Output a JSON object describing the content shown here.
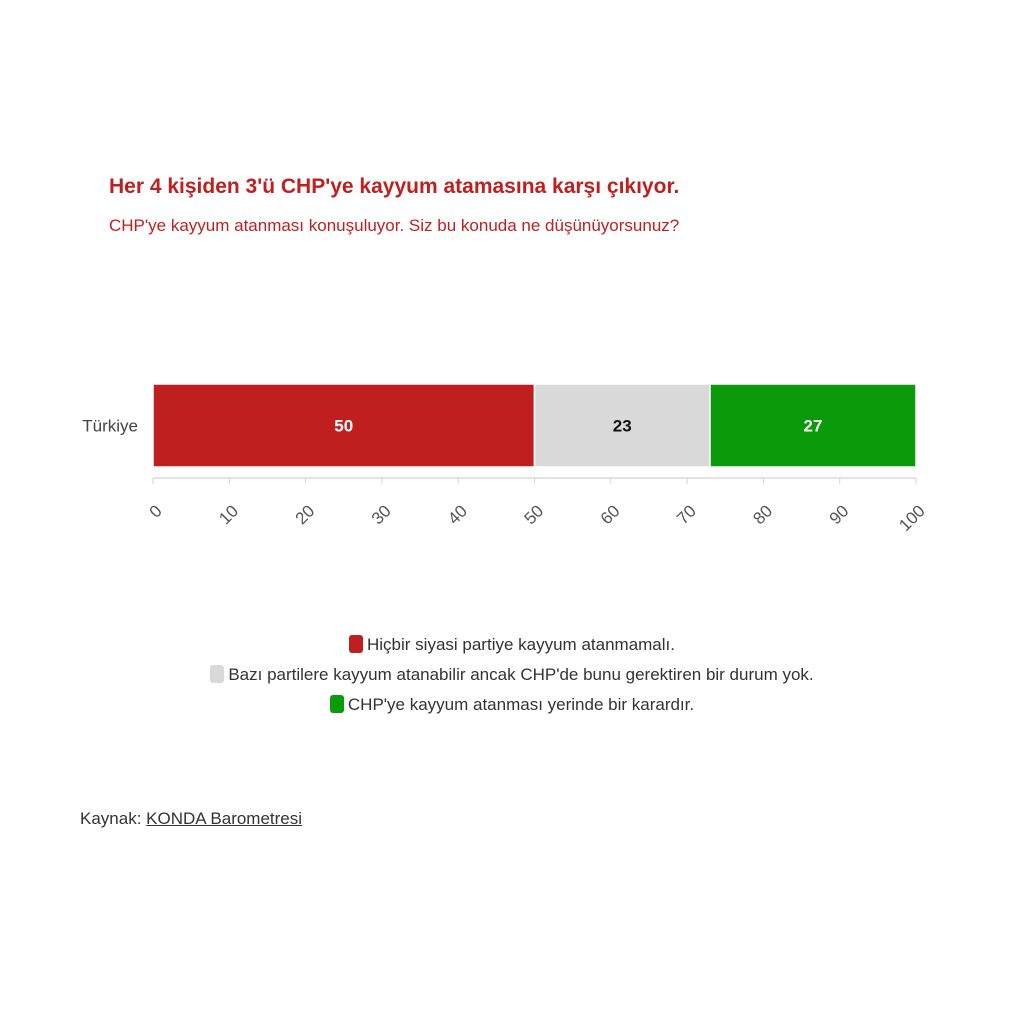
{
  "chart_data": {
    "type": "bar",
    "orientation": "horizontal",
    "stacked": true,
    "title": "Her 4 kişiden 3'ü CHP'ye kayyum atamasına karşı çıkıyor.",
    "subtitle": "CHP'ye kayyum atanması konuşuluyor. Siz bu konuda ne düşünüyorsunuz?",
    "categories": [
      "Türkiye"
    ],
    "series": [
      {
        "name": "Hiçbir siyasi partiye kayyum atanmamalı.",
        "values": [
          50
        ],
        "color": "#c01f20",
        "label_color": "#ffffff"
      },
      {
        "name": "Bazı partilere kayyum atanabilir ancak CHP'de bunu gerektiren bir durum yok.",
        "values": [
          23
        ],
        "color": "#d9d9d9",
        "label_color": "#111111"
      },
      {
        "name": "CHP'ye kayyum atanması yerinde bir karardır.",
        "values": [
          27
        ],
        "color": "#0a9a0a",
        "label_color": "#ffffff"
      }
    ],
    "xlim": [
      0,
      100
    ],
    "xticks": [
      0,
      10,
      20,
      30,
      40,
      50,
      60,
      70,
      80,
      90,
      100
    ],
    "grid": false,
    "legend_position": "bottom"
  },
  "source": {
    "prefix": "Kaynak: ",
    "link_text": "KONDA Barometresi"
  }
}
